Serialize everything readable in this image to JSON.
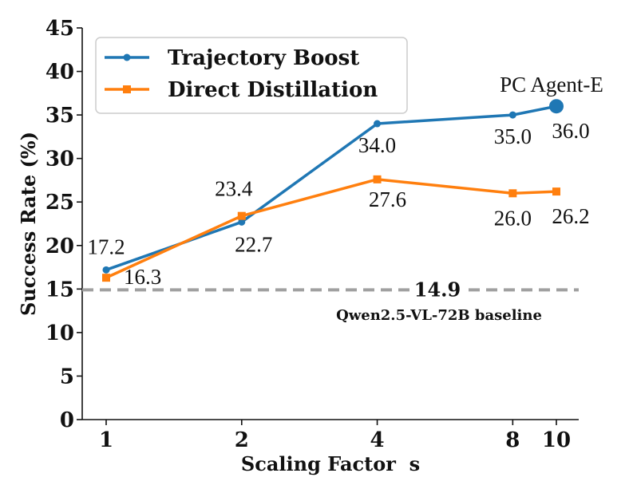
{
  "chart_data": {
    "type": "line",
    "title": "",
    "xlabel": "Scaling Factor  s",
    "ylabel": "Success Rate (%)",
    "x": [
      1,
      2,
      4,
      8,
      10
    ],
    "x_tick_labels": [
      "1",
      "2",
      "4",
      "8",
      "10"
    ],
    "xscale": "log",
    "ylim": [
      0,
      45
    ],
    "yticks": [
      0,
      5,
      10,
      15,
      20,
      25,
      30,
      35,
      40,
      45
    ],
    "y_tick_labels": [
      "0",
      "5",
      "10",
      "15",
      "20",
      "25",
      "30",
      "35",
      "40",
      "45"
    ],
    "grid": false,
    "legend_position": "top-left",
    "series": [
      {
        "name": "Trajectory Boost",
        "color": "#1f77b4",
        "marker": "circle",
        "values": [
          17.2,
          22.7,
          34.0,
          35.0,
          36.0
        ],
        "labels": [
          "17.2",
          "22.7",
          "34.0",
          "35.0",
          "36.0"
        ]
      },
      {
        "name": "Direct Distillation",
        "color": "#ff7f0e",
        "marker": "square",
        "values": [
          16.3,
          23.4,
          27.6,
          26.0,
          26.2
        ],
        "labels": [
          "16.3",
          "23.4",
          "27.6",
          "26.0",
          "26.2"
        ]
      }
    ],
    "baseline": {
      "value": 14.9,
      "value_label": "14.9",
      "label": "Qwen2.5-VL-72B baseline",
      "color": "#a0a0a0",
      "style": "dashed"
    },
    "annotations": [
      {
        "text": "PC Agent-E",
        "series": "Trajectory Boost",
        "point_index": 4
      }
    ]
  }
}
